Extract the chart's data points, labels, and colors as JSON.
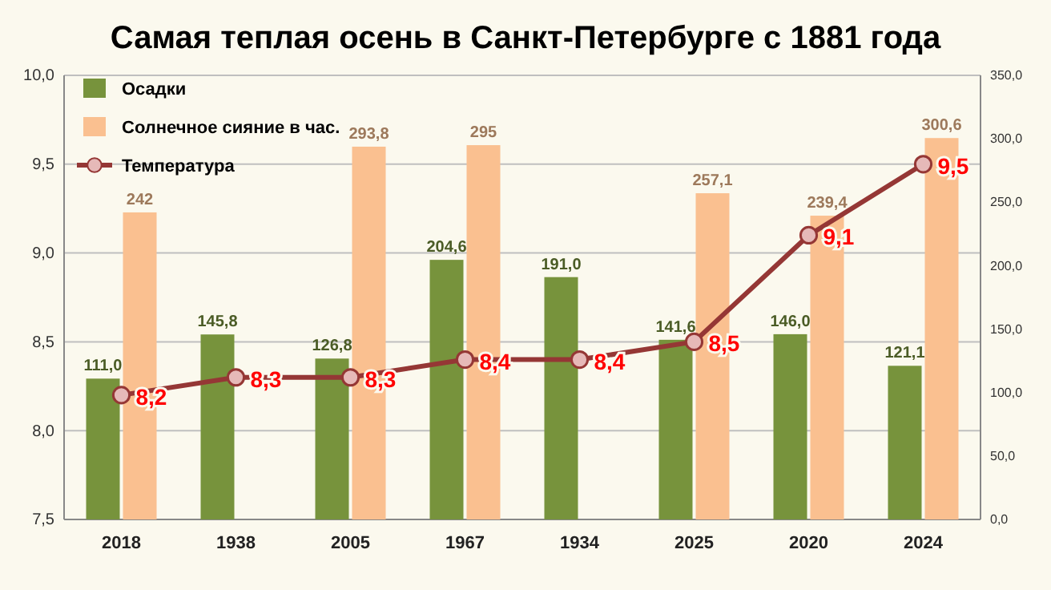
{
  "chart_data": {
    "type": "bar",
    "title": "Самая теплая осень в Санкт-Петербурге с 1881 года",
    "categories": [
      "2018",
      "1938",
      "2005",
      "1967",
      "1934",
      "2025",
      "2020",
      "2024"
    ],
    "series": [
      {
        "name": "Осадки",
        "axis": "y2",
        "color": "#77933c",
        "values": [
          111.0,
          145.8,
          126.8,
          204.6,
          191.0,
          141.6,
          146.0,
          121.1
        ],
        "value_labels": [
          "111,0",
          "145,8",
          "126,8",
          "204,6",
          "191,0",
          "141,6",
          "146,0",
          "121,1"
        ]
      },
      {
        "name": "Солнечное сияние в час.",
        "axis": "y2",
        "color": "#fac090",
        "values": [
          242,
          null,
          293.8,
          295,
          null,
          257.1,
          239.4,
          300.6
        ],
        "value_labels": [
          "242",
          null,
          "293,8",
          "295",
          null,
          "257,1",
          "239,4",
          "300,6"
        ]
      },
      {
        "name": "Температура",
        "type": "line",
        "axis": "y",
        "color": "#953735",
        "marker": "circle",
        "values": [
          8.2,
          8.3,
          8.3,
          8.4,
          8.4,
          8.5,
          9.1,
          9.5
        ],
        "value_labels": [
          "8,2",
          "8,3",
          "8,3",
          "8,4",
          "8,4",
          "8,5",
          "9,1",
          "9,5"
        ]
      }
    ],
    "ylim": [
      7.5,
      10.0
    ],
    "yticks": [
      {
        "value": 7.5,
        "label": "7,5"
      },
      {
        "value": 8.0,
        "label": "8,0"
      },
      {
        "value": 8.5,
        "label": "8,5"
      },
      {
        "value": 9.0,
        "label": "9,0"
      },
      {
        "value": 9.5,
        "label": "9,5"
      },
      {
        "value": 10.0,
        "label": "10,0"
      }
    ],
    "y2lim": [
      0,
      350
    ],
    "y2ticks": [
      {
        "value": 0,
        "label": "0,0"
      },
      {
        "value": 50,
        "label": "50,0"
      },
      {
        "value": 100,
        "label": "100,0"
      },
      {
        "value": 150,
        "label": "150,0"
      },
      {
        "value": 200,
        "label": "200,0"
      },
      {
        "value": 250,
        "label": "250,0"
      },
      {
        "value": 300,
        "label": "300,0"
      },
      {
        "value": 350,
        "label": "350,0"
      }
    ],
    "grid": "y",
    "legend": "top left"
  }
}
